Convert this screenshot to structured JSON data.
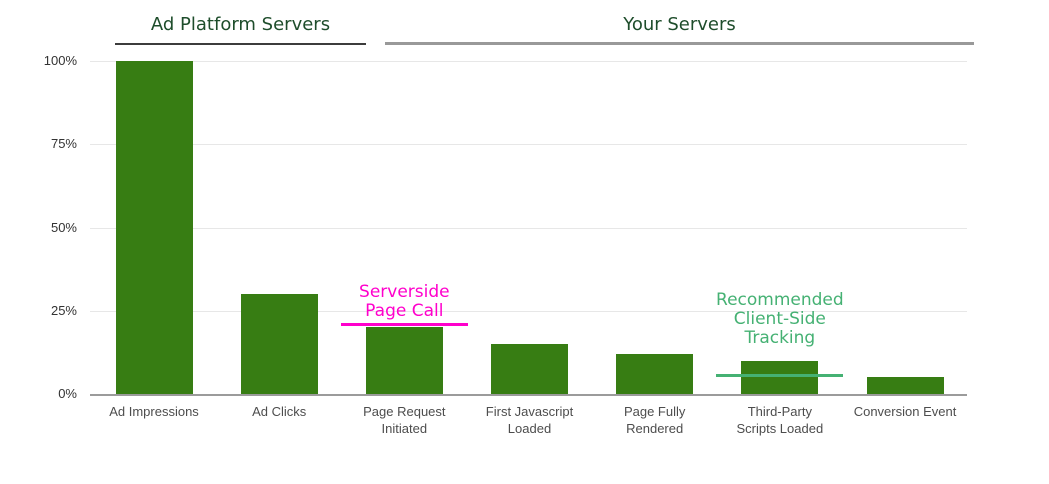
{
  "chart_data": {
    "type": "bar",
    "title": "",
    "xlabel": "",
    "ylabel": "",
    "unit": "%",
    "ylim": [
      0,
      100
    ],
    "grid": "horizontal",
    "legend": "none",
    "categories": [
      "Ad Impressions",
      "Ad Clicks",
      "Page Request Initiated",
      "First Javascript Loaded",
      "Page Fully Rendered",
      "Third-Party Scripts Loaded",
      "Conversion Event"
    ],
    "category_label_lines": [
      [
        "Ad Impressions"
      ],
      [
        "Ad Clicks"
      ],
      [
        "Page Request",
        "Initiated"
      ],
      [
        "First Javascript",
        "Loaded"
      ],
      [
        "Page Fully",
        "Rendered"
      ],
      [
        "Third-Party",
        "Scripts Loaded"
      ],
      [
        "Conversion Event"
      ]
    ],
    "values": [
      100,
      30,
      20,
      15,
      12,
      10,
      5
    ],
    "y_ticks": [
      0,
      25,
      50,
      75,
      100
    ],
    "y_tick_labels": [
      "0%",
      "25%",
      "50%",
      "75%",
      "100%"
    ],
    "sections": [
      {
        "label": "Ad Platform Servers",
        "start_index": 0,
        "end_index": 1
      },
      {
        "label": "Your Servers",
        "start_index": 2,
        "end_index": 6
      }
    ],
    "annotations": [
      {
        "id": "serverside-page-call",
        "text": "Serverside Page Call",
        "lines": [
          "Serverside",
          "Page Call"
        ],
        "color": "#ff00cc",
        "target_category": "Page Request Initiated",
        "target_index": 2,
        "line_value_pct": 21
      },
      {
        "id": "recommended-client-side-tracking",
        "text": "Recommended Client-Side Tracking",
        "lines": [
          "Recommended",
          "Client-Side",
          "Tracking"
        ],
        "color": "#45b173",
        "target_category": "Third-Party Scripts Loaded",
        "target_index": 5,
        "line_value_pct": 5.5
      }
    ],
    "colors": {
      "bar": "#377d13",
      "section_header_text": "#1e4d2b",
      "section_underline_ad_platform": "#3c3c3c",
      "section_underline_your_servers": "#999999",
      "y_axis_label": "#333333",
      "x_axis_label": "#4d4d4d",
      "gridline": "#e7e7e7",
      "baseline": "#9b9b9b",
      "annotation_serverside": "#ff00cc",
      "annotation_client_side": "#45b173",
      "background": "#ffffff"
    }
  }
}
